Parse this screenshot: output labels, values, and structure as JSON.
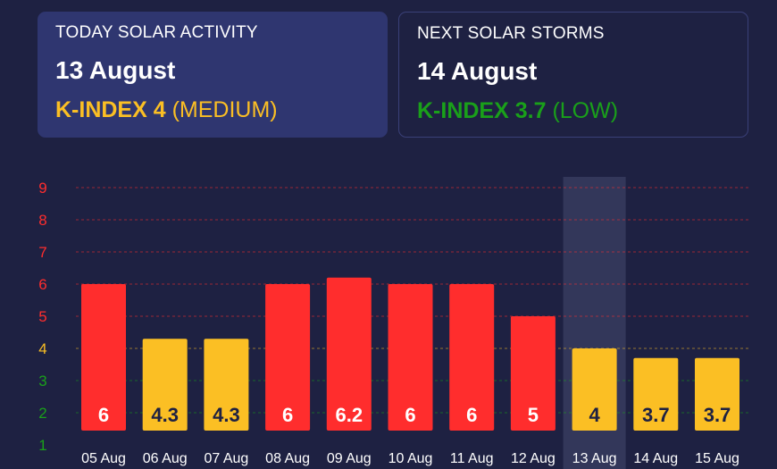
{
  "today_card": {
    "label": "TODAY SOLAR ACTIVITY",
    "date": "13 August",
    "kindex_label": "K-INDEX 4",
    "level": "(MEDIUM)",
    "color": "#fbbf24"
  },
  "next_card": {
    "label": "NEXT SOLAR STORMS",
    "date": "14 August",
    "kindex_label": "K-INDEX 3.7",
    "level": "(LOW)",
    "color": "#1aa01a"
  },
  "chart_data": {
    "type": "bar",
    "categories": [
      "05 Aug",
      "06 Aug",
      "07 Aug",
      "08 Aug",
      "09 Aug",
      "10 Aug",
      "11 Aug",
      "12 Aug",
      "13 Aug",
      "14 Aug",
      "15 Aug"
    ],
    "values": [
      6,
      4.3,
      4.3,
      6,
      6.2,
      6,
      6,
      5,
      4,
      3.7,
      3.7
    ],
    "value_labels": [
      "6",
      "4.3",
      "4.3",
      "6",
      "6.2",
      "6",
      "6",
      "5",
      "4",
      "3.7",
      "3.7"
    ],
    "bar_colors": [
      "#ff2d2d",
      "#fbbf24",
      "#fbbf24",
      "#ff2d2d",
      "#ff2d2d",
      "#ff2d2d",
      "#ff2d2d",
      "#ff2d2d",
      "#fbbf24",
      "#fbbf24",
      "#fbbf24"
    ],
    "label_colors": [
      "#ffffff",
      "#1e2142",
      "#1e2142",
      "#ffffff",
      "#ffffff",
      "#ffffff",
      "#ffffff",
      "#ffffff",
      "#1e2142",
      "#1e2142",
      "#1e2142"
    ],
    "highlight_category": "13 Aug",
    "y_ticks": [
      "1",
      "2",
      "3",
      "4",
      "5",
      "6",
      "7",
      "8",
      "9"
    ],
    "y_tick_colors": [
      "#1aa01a",
      "#1aa01a",
      "#1aa01a",
      "#fbbf24",
      "#ff2d2d",
      "#ff2d2d",
      "#ff2d2d",
      "#ff2d2d",
      "#ff2d2d"
    ],
    "ylim": [
      0.5,
      9.2
    ],
    "grid": true
  }
}
